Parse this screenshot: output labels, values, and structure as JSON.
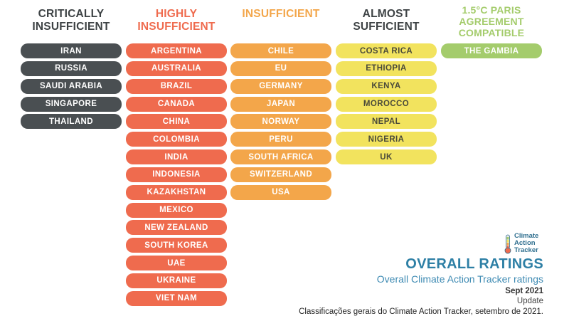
{
  "colors": {
    "critically": "#4a4f52",
    "highly": "#ef6b4e",
    "insufficient": "#f3a64a",
    "almost": "#f2e35e",
    "paris": "#a4cc6c",
    "logo_blue": "#2f6f8f"
  },
  "columns": [
    {
      "key": "critically",
      "title_line1": "CRITICALLY",
      "title_line2": "INSUFFICIENT",
      "title_line3": "",
      "countries": [
        "IRAN",
        "RUSSIA",
        "SAUDI ARABIA",
        "SINGAPORE",
        "THAILAND"
      ]
    },
    {
      "key": "highly",
      "title_line1": "HIGHLY",
      "title_line2": "INSUFFICIENT",
      "title_line3": "",
      "countries": [
        "ARGENTINA",
        "AUSTRALIA",
        "BRAZIL",
        "CANADA",
        "CHINA",
        "COLOMBIA",
        "INDIA",
        "INDONESIA",
        "KAZAKHSTAN",
        "MEXICO",
        "NEW ZEALAND",
        "SOUTH KOREA",
        "UAE",
        "UKRAINE",
        "VIET NAM"
      ]
    },
    {
      "key": "insufficient",
      "title_line1": "INSUFFICIENT",
      "title_line2": "",
      "title_line3": "",
      "countries": [
        "CHILE",
        "EU",
        "GERMANY",
        "JAPAN",
        "NORWAY",
        "PERU",
        "SOUTH AFRICA",
        "SWITZERLAND",
        "USA"
      ]
    },
    {
      "key": "almost",
      "title_line1": "ALMOST",
      "title_line2": "SUFFICIENT",
      "title_line3": "",
      "countries": [
        "COSTA RICA",
        "ETHIOPIA",
        "KENYA",
        "MOROCCO",
        "NEPAL",
        "NIGERIA",
        "UK"
      ]
    },
    {
      "key": "paris",
      "title_line1": "1.5°C PARIS",
      "title_line2": "AGREEMENT",
      "title_line3": "COMPATIBLE",
      "countries": [
        "THE GAMBIA"
      ]
    }
  ],
  "logo": {
    "line1": "Climate",
    "line2": "Action",
    "line3": "Tracker"
  },
  "footer": {
    "title": "OVERALL RATINGS",
    "subtitle": "Overall Climate Action Tracker ratings",
    "date": "Sept 2021",
    "update": "Update",
    "caption": "Classificações gerais do Climate Action Tracker, setembro de 2021."
  }
}
